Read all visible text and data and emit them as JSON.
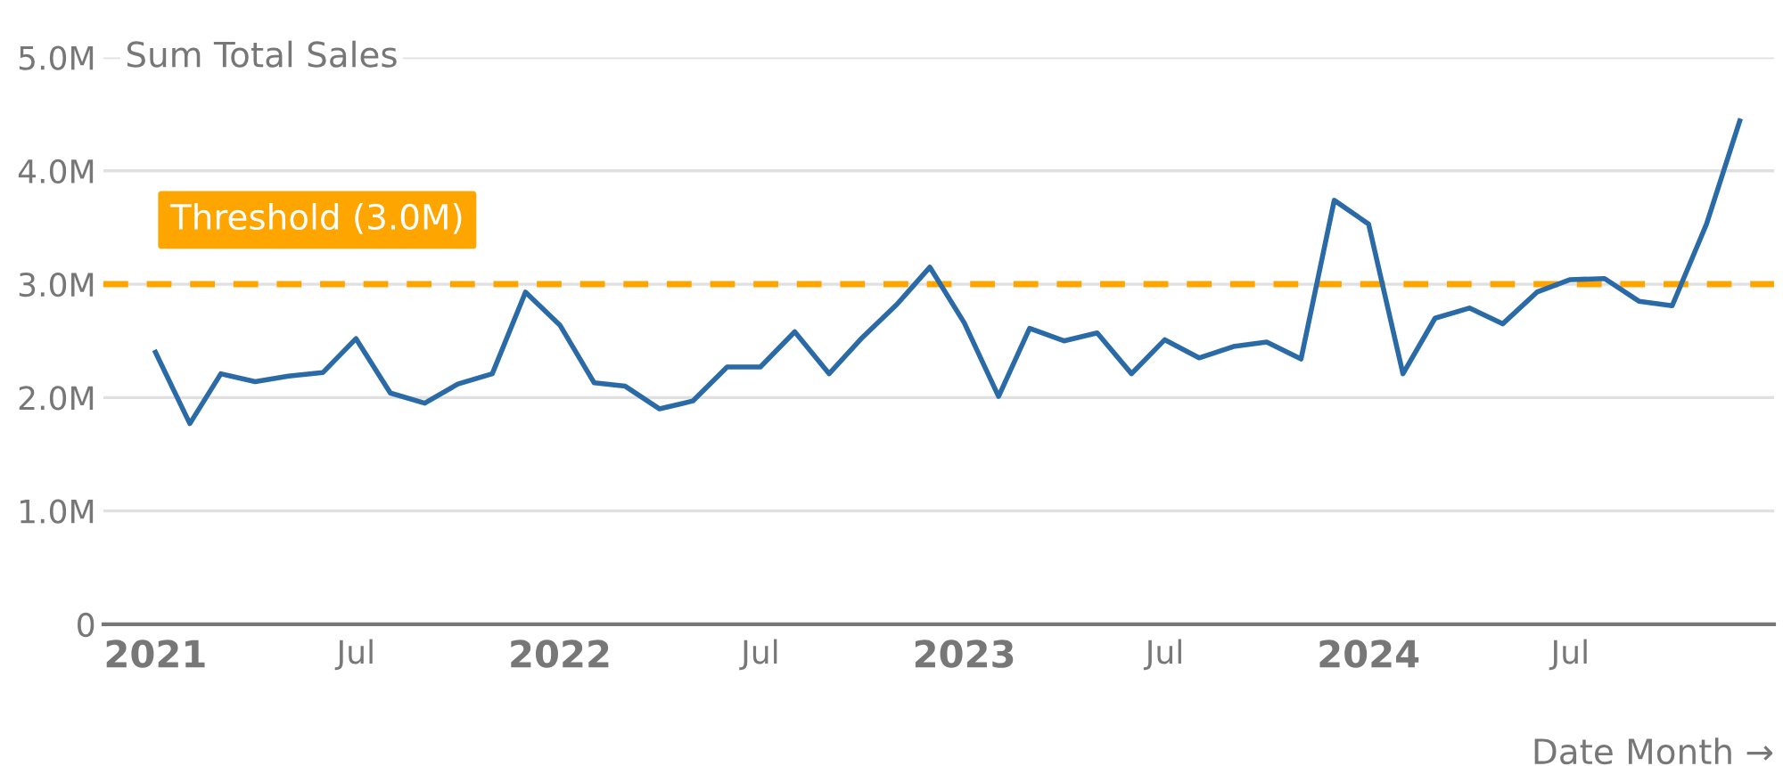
{
  "chart_data": {
    "type": "line",
    "ylabel": "Sum Total Sales",
    "xlabel": "Date Month →",
    "x": [
      "2021-01",
      "2021-02",
      "2021-03",
      "2021-04",
      "2021-05",
      "2021-06",
      "2021-07",
      "2021-08",
      "2021-09",
      "2021-10",
      "2021-11",
      "2021-12",
      "2022-01",
      "2022-02",
      "2022-03",
      "2022-04",
      "2022-05",
      "2022-06",
      "2022-07",
      "2022-08",
      "2022-09",
      "2022-10",
      "2022-11",
      "2022-12",
      "2023-01",
      "2023-02",
      "2023-03",
      "2023-04",
      "2023-05",
      "2023-06",
      "2023-07",
      "2023-08",
      "2023-09",
      "2023-10",
      "2023-11",
      "2023-12",
      "2024-01",
      "2024-02",
      "2024-03",
      "2024-04",
      "2024-05",
      "2024-06",
      "2024-07",
      "2024-08",
      "2024-09",
      "2024-10",
      "2024-11",
      "2024-12"
    ],
    "series": [
      {
        "color": "#2a6aa6",
        "values": [
          2.4,
          1.77,
          2.21,
          2.14,
          2.19,
          2.22,
          2.52,
          2.04,
          1.95,
          2.12,
          2.21,
          2.93,
          2.64,
          2.13,
          2.1,
          1.9,
          1.97,
          2.27,
          2.27,
          2.58,
          2.21,
          2.53,
          2.82,
          3.15,
          2.66,
          2.01,
          2.61,
          2.5,
          2.57,
          2.21,
          2.51,
          2.35,
          2.45,
          2.49,
          2.34,
          3.74,
          3.53,
          2.21,
          2.7,
          2.79,
          2.65,
          2.93,
          3.04,
          3.05,
          2.85,
          2.81,
          3.53,
          4.44
        ]
      }
    ],
    "xlim": [
      "2020-11-15",
      "2025-01-01"
    ],
    "xticks": [
      {
        "value": "2021-01",
        "label": "2021"
      },
      {
        "value": "2021-07",
        "label": "Jul"
      },
      {
        "value": "2022-01",
        "label": "2022"
      },
      {
        "value": "2022-07",
        "label": "Jul"
      },
      {
        "value": "2023-01",
        "label": "2023"
      },
      {
        "value": "2023-07",
        "label": "Jul"
      },
      {
        "value": "2024-01",
        "label": "2024"
      },
      {
        "value": "2024-07",
        "label": "Jul"
      }
    ],
    "ylim": [
      0,
      5
    ],
    "yticks": [
      0,
      {
        "value": 1,
        "label": "1.0M"
      },
      {
        "value": 2,
        "label": "2.0M"
      },
      {
        "value": 3,
        "label": "3.0M"
      },
      {
        "value": 4,
        "label": "4.0M"
      },
      {
        "value": 5,
        "label": "5.0M"
      }
    ],
    "ref_lines": [
      {
        "axis": "y",
        "value": 3,
        "label": "Threshold (3.0M)",
        "color": "#ffa500",
        "line_style": "dashed"
      }
    ],
    "grid": "y",
    "legend": false,
    "marker": "none",
    "line_style": "solid"
  }
}
